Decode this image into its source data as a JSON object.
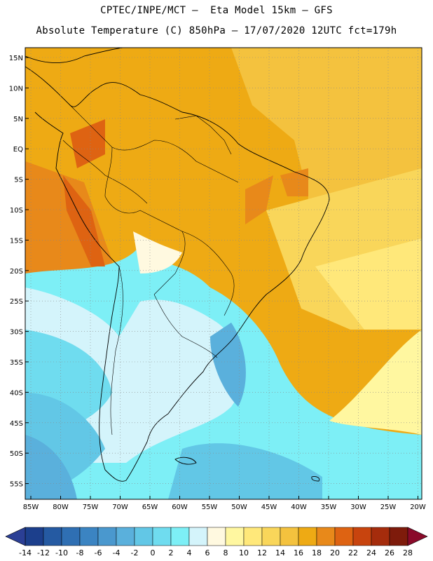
{
  "header": {
    "line1": "CPTEC/INPE/MCT –  Eta Model 15km – GFS",
    "line2": "Absolute Temperature (C) 850hPa – 17/07/2020 12UTC fct=179h"
  },
  "map": {
    "lat_labels": [
      "15N",
      "10N",
      "5N",
      "EQ",
      "5S",
      "10S",
      "15S",
      "20S",
      "25S",
      "30S",
      "35S",
      "40S",
      "45S",
      "50S",
      "55S"
    ],
    "lon_labels": [
      "85W",
      "80W",
      "75W",
      "70W",
      "65W",
      "60W",
      "55W",
      "50W",
      "45W",
      "40W",
      "35W",
      "30W",
      "25W",
      "20W"
    ],
    "gridlines": true
  },
  "colorbar": {
    "labels": [
      "-14",
      "-12",
      "-10",
      "-8",
      "-6",
      "-4",
      "-2",
      "0",
      "2",
      "4",
      "6",
      "8",
      "10",
      "12",
      "14",
      "16",
      "18",
      "20",
      "22",
      "24",
      "26",
      "28"
    ],
    "colors": [
      "#1c3f8c",
      "#255aa2",
      "#2f6fb3",
      "#3b84c2",
      "#4a98ce",
      "#5ab0dc",
      "#62c7e6",
      "#6fdcef",
      "#7deff6",
      "#d4f4fb",
      "#fff9e0",
      "#fff7a0",
      "#ffe87a",
      "#f9d65a",
      "#f4c23e",
      "#eeaa14",
      "#e8891a",
      "#de6312",
      "#c8440e",
      "#a52c0c",
      "#7e1b0b"
    ],
    "low_color": "#2b3f95",
    "high_color": "#8a0a2a"
  }
}
